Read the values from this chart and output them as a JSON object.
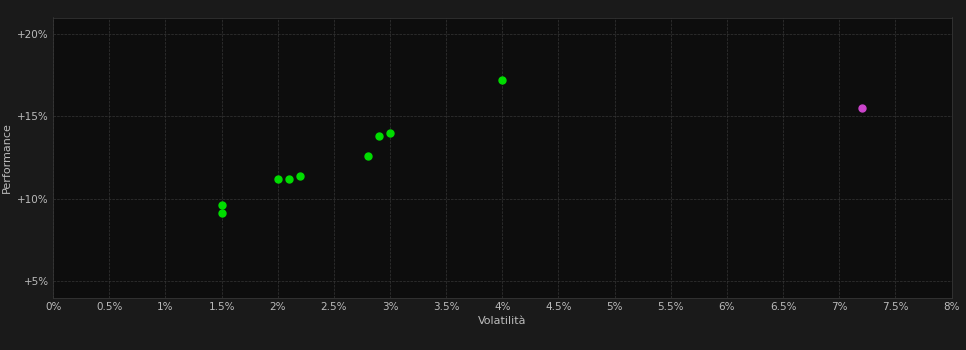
{
  "background_color": "#1a1a1a",
  "plot_bg_color": "#0d0d0d",
  "grid_color": "#3a3a3a",
  "xlabel": "Volatilità",
  "ylabel": "Performance",
  "xlim": [
    0.0,
    0.08
  ],
  "ylim": [
    0.04,
    0.21
  ],
  "xticks": [
    0.0,
    0.005,
    0.01,
    0.015,
    0.02,
    0.025,
    0.03,
    0.035,
    0.04,
    0.045,
    0.05,
    0.055,
    0.06,
    0.065,
    0.07,
    0.075,
    0.08
  ],
  "yticks": [
    0.05,
    0.1,
    0.15,
    0.2
  ],
  "green_points": [
    [
      0.015,
      0.096
    ],
    [
      0.015,
      0.091
    ],
    [
      0.02,
      0.112
    ],
    [
      0.021,
      0.112
    ],
    [
      0.022,
      0.114
    ],
    [
      0.028,
      0.126
    ],
    [
      0.029,
      0.138
    ],
    [
      0.03,
      0.14
    ],
    [
      0.04,
      0.172
    ]
  ],
  "pink_points": [
    [
      0.072,
      0.155
    ]
  ],
  "green_color": "#00dd00",
  "pink_color": "#cc44cc",
  "point_size": 25,
  "text_color": "#bbbbbb",
  "label_fontsize": 8,
  "tick_fontsize": 7.5
}
